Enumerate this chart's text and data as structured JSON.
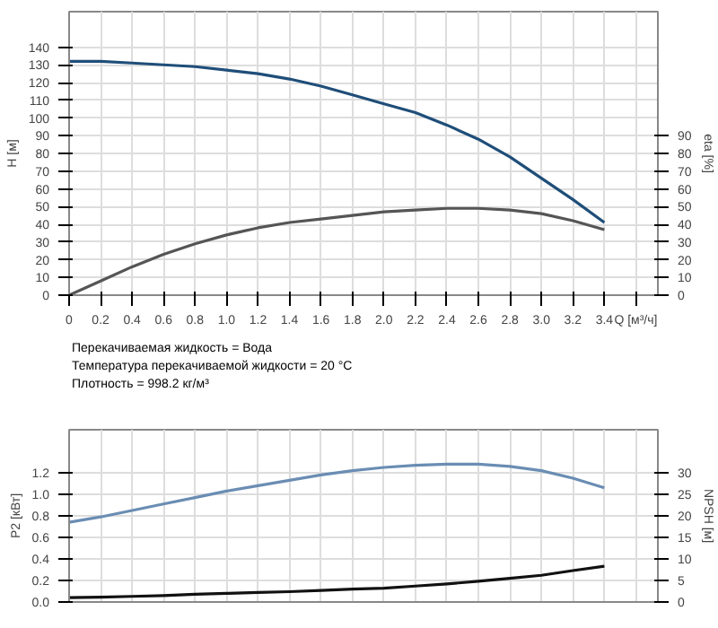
{
  "chart_data": [
    {
      "type": "line",
      "ylabel": "H [м]",
      "y2label": "eta [%]",
      "x": [
        0,
        0.2,
        0.4,
        0.6,
        0.8,
        1.0,
        1.2,
        1.4,
        1.6,
        1.8,
        2.0,
        2.2,
        2.4,
        2.6,
        2.8,
        3.0,
        3.2,
        3.4
      ],
      "series": [
        {
          "color": "#1f4e79",
          "values": [
            132,
            132,
            131,
            130,
            129,
            127,
            125,
            122,
            118,
            113,
            108,
            103,
            96,
            88,
            78,
            66,
            54,
            41
          ]
        },
        {
          "color": "#555555",
          "axis": "y2",
          "values": [
            0,
            8,
            16,
            23,
            29,
            34,
            38,
            41,
            43,
            45,
            47,
            48,
            49,
            49,
            48,
            46,
            42,
            37
          ]
        }
      ],
      "xlim": [
        0,
        3.74
      ],
      "xticks": [
        0,
        {
          "value": 0.2,
          "label": "0.2"
        },
        {
          "value": 0.4,
          "label": "0.4"
        },
        {
          "value": 0.6,
          "label": "0.6"
        },
        {
          "value": 0.8,
          "label": "0.8"
        },
        {
          "value": 1.0,
          "label": "1.0"
        },
        {
          "value": 1.2,
          "label": "1.2"
        },
        {
          "value": 1.4,
          "label": "1.4"
        },
        {
          "value": 1.6,
          "label": "1.6"
        },
        {
          "value": 1.8,
          "label": "1.8"
        },
        {
          "value": 2.0,
          "label": "2.0"
        },
        {
          "value": 2.2,
          "label": "2.2"
        },
        {
          "value": 2.4,
          "label": "2.4"
        },
        {
          "value": 2.6,
          "label": "2.6"
        },
        {
          "value": 2.8,
          "label": "2.8"
        },
        {
          "value": 3.0,
          "label": "3.0"
        },
        {
          "value": 3.2,
          "label": "3.2"
        },
        {
          "value": 3.4,
          "label": "3.4"
        },
        {
          "value": 3.6,
          "label": "Q [м³/ч]"
        }
      ],
      "ylim": [
        0,
        160
      ],
      "yticks": [
        0,
        10,
        20,
        30,
        40,
        50,
        60,
        70,
        80,
        90,
        100,
        110,
        120,
        130,
        140
      ],
      "y2lim": [
        0,
        160
      ],
      "y2ticks": [
        0,
        10,
        20,
        30,
        40,
        50,
        60,
        70,
        80,
        90
      ],
      "grid": true,
      "annotations": [
        "Перекачиваемая жидкость = Вода",
        "Температура перекачиваемой жидкости = 20 °C",
        "Плотность = 998.2 кг/м³"
      ]
    },
    {
      "type": "line",
      "ylabel": "P2 [кВт]",
      "y2label": "NPSH [м]",
      "x": [
        0,
        0.2,
        0.4,
        0.6,
        0.8,
        1.0,
        1.2,
        1.4,
        1.6,
        1.8,
        2.0,
        2.2,
        2.4,
        2.6,
        2.8,
        3.0,
        3.2,
        3.4
      ],
      "series": [
        {
          "color": "#6a8db3",
          "values": [
            0.74,
            0.79,
            0.85,
            0.91,
            0.97,
            1.03,
            1.08,
            1.13,
            1.18,
            1.22,
            1.25,
            1.27,
            1.28,
            1.28,
            1.26,
            1.22,
            1.15,
            1.06
          ]
        },
        {
          "color": "#111111",
          "axis": "y2",
          "values": [
            1.0,
            1.1,
            1.3,
            1.5,
            1.8,
            2.0,
            2.2,
            2.4,
            2.7,
            3.0,
            3.2,
            3.7,
            4.2,
            4.8,
            5.5,
            6.2,
            7.3,
            8.3
          ]
        }
      ],
      "xlim": [
        0,
        3.74
      ],
      "xticks": [
        0,
        0.2,
        0.4,
        0.6,
        0.8,
        1.0,
        1.2,
        1.4,
        1.6,
        1.8,
        2.0,
        2.2,
        2.4,
        2.6,
        2.8,
        3.0,
        3.2,
        3.4,
        3.6
      ],
      "ylim": [
        0,
        1.6
      ],
      "yticks": [
        {
          "value": 0,
          "label": "0.0"
        },
        0.2,
        0.4,
        0.6,
        0.8,
        {
          "value": 1.0,
          "label": "1.0"
        },
        1.2
      ],
      "y2lim": [
        0,
        40
      ],
      "y2ticks": [
        0,
        5,
        10,
        15,
        20,
        25,
        30
      ],
      "grid": true,
      "tick_labels": "y"
    }
  ]
}
